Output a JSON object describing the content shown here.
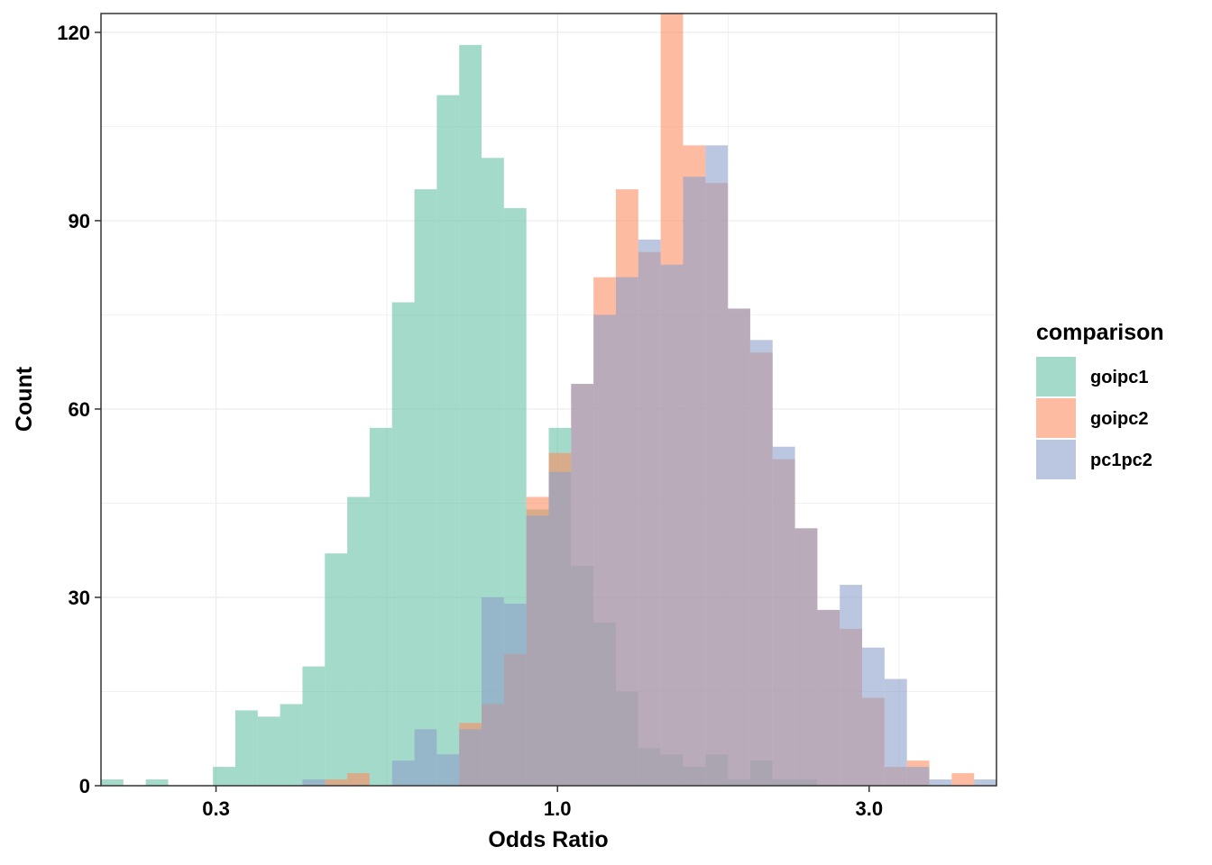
{
  "chart_data": {
    "type": "bar",
    "subtype": "overlaid-histogram",
    "title": "",
    "xlabel": "Odds Ratio",
    "ylabel": "Count",
    "x_scale": "log10",
    "xlim": [
      0.2,
      4.7
    ],
    "ylim": [
      0,
      123
    ],
    "x_ticks": [
      0.3,
      1.0,
      3.0
    ],
    "x_tick_labels": [
      "0.3",
      "1.0",
      "3.0"
    ],
    "y_ticks": [
      0,
      30,
      60,
      90,
      120
    ],
    "y_tick_labels": [
      "0",
      "30",
      "60",
      "90",
      "120"
    ],
    "grid": true,
    "legend": {
      "title": "comparison",
      "position": "right"
    },
    "bins": {
      "count": 40,
      "start": 0.2,
      "end": 4.7
    },
    "series": [
      {
        "name": "goipc1",
        "color": "#66C2A5",
        "values": [
          1,
          0,
          1,
          0,
          0,
          3,
          12,
          11,
          13,
          19,
          37,
          46,
          57,
          77,
          95,
          110,
          118,
          100,
          92,
          44,
          57,
          35,
          26,
          15,
          6,
          5,
          3,
          5,
          1,
          4,
          1,
          1,
          0,
          0,
          0,
          0,
          0,
          0,
          0,
          0
        ]
      },
      {
        "name": "goipc2",
        "color": "#FC8D62",
        "values": [
          0,
          0,
          0,
          0,
          0,
          0,
          0,
          0,
          0,
          0,
          1,
          2,
          0,
          0,
          0,
          0,
          10,
          13,
          21,
          46,
          53,
          64,
          81,
          95,
          85,
          124,
          102,
          96,
          76,
          69,
          52,
          41,
          28,
          25,
          14,
          3,
          4,
          0,
          2,
          0
        ]
      },
      {
        "name": "pc1pc2",
        "color": "#8DA0CB",
        "values": [
          0,
          0,
          0,
          0,
          0,
          0,
          0,
          0,
          0,
          1,
          0,
          0,
          0,
          4,
          9,
          5,
          9,
          30,
          29,
          43,
          50,
          64,
          75,
          81,
          87,
          83,
          97,
          102,
          76,
          71,
          54,
          41,
          28,
          32,
          22,
          17,
          3,
          1,
          0,
          1
        ]
      }
    ]
  }
}
